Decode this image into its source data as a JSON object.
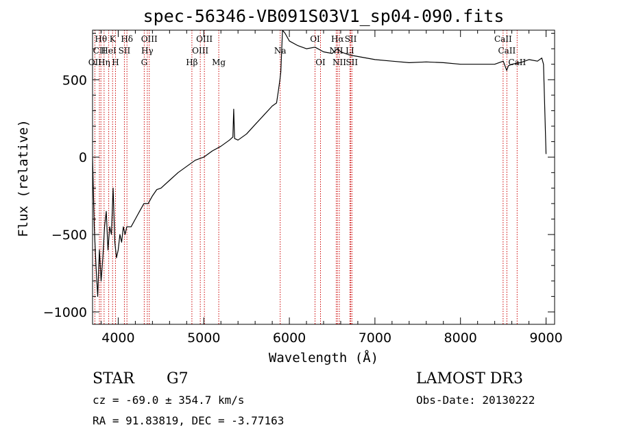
{
  "chart_data": {
    "type": "line",
    "title": "spec-56346-VB091S03V1_sp04-090.fits",
    "xlabel": "Wavelength (Å)",
    "ylabel": "Flux (relative)",
    "xlim": [
      3700,
      9100
    ],
    "ylim": [
      -1080,
      820
    ],
    "x_ticks": [
      4000,
      5000,
      6000,
      7000,
      8000,
      9000
    ],
    "y_ticks": [
      -1000,
      -500,
      0,
      500
    ],
    "series": [
      {
        "name": "flux",
        "x": [
          3700,
          3720,
          3740,
          3760,
          3780,
          3800,
          3820,
          3840,
          3860,
          3880,
          3900,
          3920,
          3940,
          3960,
          3980,
          4000,
          4020,
          4040,
          4060,
          4080,
          4100,
          4150,
          4200,
          4250,
          4300,
          4350,
          4400,
          4450,
          4500,
          4600,
          4700,
          4800,
          4900,
          5000,
          5100,
          5200,
          5300,
          5340,
          5350,
          5360,
          5400,
          5500,
          5600,
          5700,
          5800,
          5850,
          5870,
          5890,
          5900,
          5910,
          5920,
          5950,
          6000,
          6100,
          6200,
          6300,
          6400,
          6500,
          6560,
          6600,
          6700,
          6800,
          6900,
          7000,
          7200,
          7400,
          7600,
          7800,
          8000,
          8200,
          8400,
          8500,
          8540,
          8560,
          8600,
          8700,
          8800,
          8900,
          8950,
          8970,
          9000
        ],
        "y": [
          0,
          -450,
          -700,
          -900,
          -600,
          -800,
          -650,
          -450,
          -350,
          -600,
          -450,
          -500,
          -200,
          -550,
          -650,
          -600,
          -500,
          -550,
          -450,
          -500,
          -450,
          -450,
          -400,
          -350,
          -300,
          -300,
          -250,
          -210,
          -200,
          -150,
          -100,
          -60,
          -20,
          0,
          40,
          70,
          110,
          130,
          310,
          120,
          110,
          150,
          210,
          270,
          330,
          350,
          420,
          500,
          550,
          680,
          820,
          800,
          750,
          720,
          700,
          710,
          680,
          670,
          700,
          680,
          660,
          650,
          640,
          630,
          620,
          610,
          615,
          610,
          600,
          600,
          600,
          620,
          560,
          590,
          600,
          610,
          630,
          620,
          640,
          600,
          20
        ]
      }
    ],
    "spectral_lines": [
      {
        "label": "Hθ",
        "wl": 3798,
        "row": 0
      },
      {
        "label": "CII",
        "wl": 3780,
        "row": 1
      },
      {
        "label": "OII",
        "wl": 3727,
        "row": 2
      },
      {
        "label": "Hη",
        "wl": 3835,
        "row": 2
      },
      {
        "label": "K",
        "wl": 3934,
        "row": 0
      },
      {
        "label": "HeI",
        "wl": 3889,
        "row": 1
      },
      {
        "label": "H",
        "wl": 3968,
        "row": 2
      },
      {
        "label": "Hδ",
        "wl": 4102,
        "row": 0
      },
      {
        "label": "SII",
        "wl": 4072,
        "row": 1
      },
      {
        "label": "OIII",
        "wl": 4363,
        "row": 0
      },
      {
        "label": "Hγ",
        "wl": 4340,
        "row": 1
      },
      {
        "label": "G",
        "wl": 4304,
        "row": 2
      },
      {
        "label": "Hβ",
        "wl": 4861,
        "row": 2
      },
      {
        "label": "OIII",
        "wl": 5007,
        "row": 0
      },
      {
        "label": "OIII",
        "wl": 4959,
        "row": 1
      },
      {
        "label": "Mg",
        "wl": 5175,
        "row": 2
      },
      {
        "label": "Na",
        "wl": 5893,
        "row": 1
      },
      {
        "label": "OI",
        "wl": 6300,
        "row": 0
      },
      {
        "label": "OI",
        "wl": 6364,
        "row": 2
      },
      {
        "label": "Hα",
        "wl": 6563,
        "row": 0
      },
      {
        "label": "NII",
        "wl": 6548,
        "row": 1
      },
      {
        "label": "NII",
        "wl": 6584,
        "row": 2
      },
      {
        "label": "SII",
        "wl": 6717,
        "row": 0
      },
      {
        "label": "LI",
        "wl": 6708,
        "row": 1
      },
      {
        "label": "SII",
        "wl": 6731,
        "row": 2
      },
      {
        "label": "CaII",
        "wl": 8498,
        "row": 0
      },
      {
        "label": "CaII",
        "wl": 8542,
        "row": 1
      },
      {
        "label": "CaII",
        "wl": 8662,
        "row": 2
      }
    ]
  },
  "footer": {
    "object_type": "STAR",
    "subclass": "G7",
    "survey": "LAMOST DR3",
    "cz": "cz = -69.0 ± 354.7 km/s",
    "obs_date": "Obs-Date: 20130222",
    "coords": "RA =  91.83819, DEC =  -3.77163"
  },
  "colors": {
    "line": "#000000",
    "marker": "#cc0000"
  }
}
